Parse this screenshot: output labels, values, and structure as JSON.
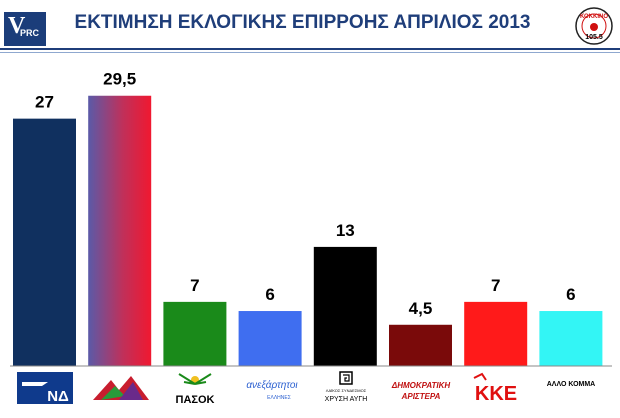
{
  "header": {
    "title": "ΕΚΤΙΜΗΣΗ ΕΚΛΟΓΙΚΗΣ ΕΠΙΡΡΟΗΣ ΑΠΡΙΛΙΟΣ 2013",
    "pollster_logo_letter": "V",
    "pollster_logo_text": "PRC",
    "radio_logo_text": "ΚΟΚΚΙΝΟ",
    "radio_logo_freq": "105.5"
  },
  "chart_data": {
    "type": "bar",
    "categories": [
      "ΝΔ",
      "ΣΥΡΙΖΑ",
      "ΠΑΣΟΚ",
      "ΑΝΕΞΑΡΤΗΤΟΙ ΕΛΛΗΝΕΣ",
      "ΧΡΥΣΗ ΑΥΓΗ",
      "ΔΗΜΟΚΡΑΤΙΚΗ ΑΡΙΣΤΕΡΑ",
      "ΚΚΕ",
      "ΑΛΛΟ ΚΟΜΜΑ"
    ],
    "values": [
      27,
      29.5,
      7,
      6,
      13,
      4.5,
      7,
      6
    ],
    "value_labels": [
      "27",
      "29,5",
      "7",
      "6",
      "13",
      "4,5",
      "7",
      "6"
    ],
    "colors": [
      "#10305f",
      "gradient-blue-red",
      "#1a8a1a",
      "#3f6ef0",
      "#000000",
      "#7a0a0a",
      "#ff1a1a",
      "#33f5f5"
    ],
    "ylim": [
      0,
      31
    ],
    "grid": false,
    "legend": "none"
  },
  "logos": {
    "nd_text": "ΝΔ",
    "pasok_text": "ΠΑΣΟΚ",
    "anel_text": "ανεξάρτητοι",
    "anel_sub": "ΕΛΛΗΝΕΣ",
    "xa_top": "ΛΑΪΚΟΣ ΣΥΝΔΕΣΜΟΣ",
    "xa_text": "ΧΡΥΣΗ ΑΥΓΗ",
    "dimar_line1": "ΔΗΜΟΚΡΑΤΙΚΗ",
    "dimar_line2": "ΑΡΙΣΤΕΡΑ",
    "kke_text": "ΚΚΕ",
    "other_text": "ΑΛΛΟ ΚΟΜΜΑ"
  }
}
